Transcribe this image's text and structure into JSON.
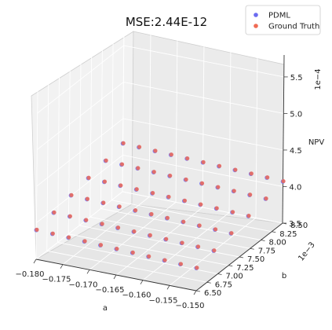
{
  "chart_data": {
    "type": "scatter3d",
    "title": "MSE:2.44E-12",
    "xlabel": "a",
    "ylabel": "b",
    "zlabel": "NPV",
    "x_ticks": [
      "−0.180",
      "−0.175",
      "−0.170",
      "−0.165",
      "−0.160",
      "−0.155",
      "−0.150"
    ],
    "y_ticks": [
      "6.50",
      "6.75",
      "7.00",
      "7.25",
      "7.50",
      "7.75",
      "8.00",
      "8.25",
      "8.50"
    ],
    "y_offset": "1e−3",
    "z_ticks": [
      "3.5",
      "4.0",
      "4.5",
      "5.0",
      "5.5"
    ],
    "z_offset": "1e−4",
    "xlim": [
      -0.18,
      -0.15
    ],
    "ylim": [
      0.0065,
      0.0085
    ],
    "zlim": [
      0.00035,
      0.00058
    ],
    "grid": true,
    "legend_position": "top-right",
    "a_values": [
      -0.18,
      -0.177,
      -0.174,
      -0.171,
      -0.168,
      -0.165,
      -0.162,
      -0.159,
      -0.156,
      -0.153,
      -0.15
    ],
    "b_values": [
      0.0065,
      0.0069,
      0.0073,
      0.0077,
      0.0081,
      0.0085
    ],
    "npv_rule": "npv = 3.9e-4 + 1.3e-2*(b - 0.0065) - 3.0e-4*(a + 0.18) (approximate read-off surface)",
    "series": [
      {
        "name": "PDML",
        "color": "#6b6bf0",
        "opacity": 0.85
      },
      {
        "name": "Ground Truth",
        "color": "#f06b55",
        "opacity": 0.85
      }
    ]
  }
}
